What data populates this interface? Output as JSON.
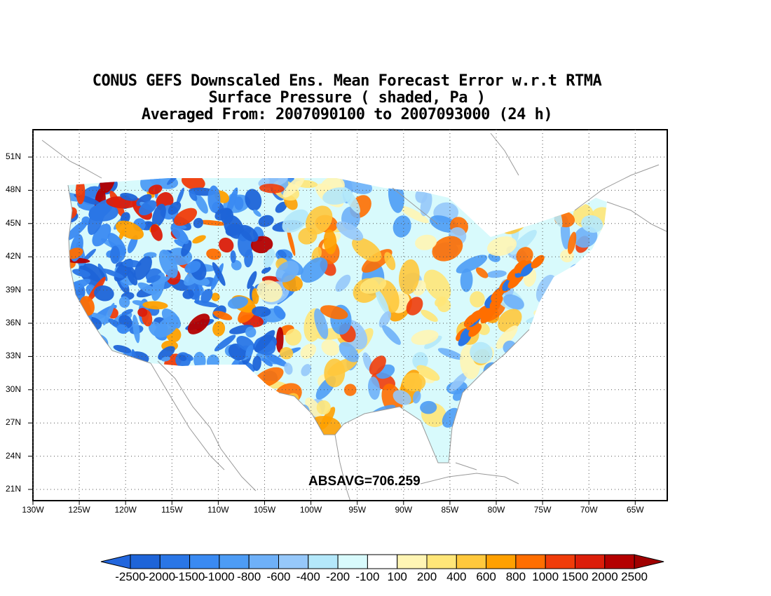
{
  "titles": {
    "line1": "CONUS GEFS Downscaled Ens. Mean Forecast Error w.r.t RTMA",
    "line2": "Surface Pressure ( shaded, Pa )",
    "line3": "Averaged From: 2007090100 to 2007093000 (24 h)"
  },
  "absavg": "ABSAVG=706.259",
  "lat_labels": [
    "51N",
    "48N",
    "45N",
    "42N",
    "39N",
    "36N",
    "33N",
    "30N",
    "27N",
    "24N",
    "21N"
  ],
  "lon_labels": [
    "130W",
    "125W",
    "120W",
    "115W",
    "110W",
    "105W",
    "100W",
    "95W",
    "90W",
    "85W",
    "80W",
    "75W",
    "70W",
    "65W"
  ],
  "colorbar": {
    "labels": [
      "-2500",
      "-2000",
      "-1500",
      "-1000",
      "-800",
      "-600",
      "-400",
      "-200",
      "-100",
      "100",
      "200",
      "400",
      "600",
      "800",
      "1000",
      "1500",
      "2000",
      "2500"
    ],
    "colors": [
      "#1e64d8",
      "#2a76e6",
      "#3a8af2",
      "#4d9cf5",
      "#6eb0f8",
      "#96c8fa",
      "#b4e8fa",
      "#d8fafc",
      "#ffffff",
      "#fff5b4",
      "#ffe678",
      "#ffc83c",
      "#ffa000",
      "#ff6e00",
      "#f03c0a",
      "#dc1e0a",
      "#b40000"
    ],
    "low_arrow_color": "#2266dd",
    "high_arrow_color": "#a00000"
  }
}
